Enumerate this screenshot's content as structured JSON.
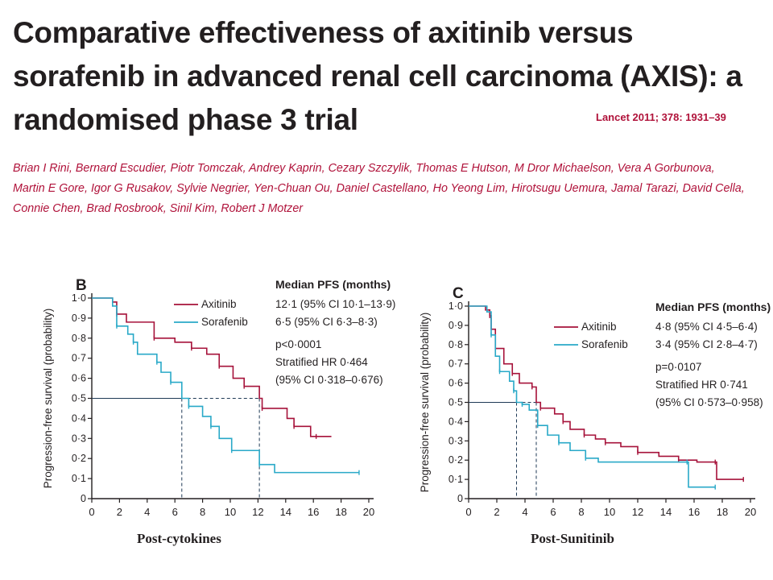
{
  "paper": {
    "title": "Comparative effectiveness of axitinib versus sorafenib in advanced renal cell carcinoma (AXIS): a randomised phase 3 trial",
    "citation": "Lancet 2011; 378: 1931–39",
    "authors": [
      "Brian I Rini",
      "Bernard Escudier",
      "Piotr Tomczak",
      "Andrey Kaprin",
      "Cezary Szczylik",
      "Thomas E Hutson",
      "M Dror Michaelson",
      "Vera A Gorbunova",
      "Martin E Gore",
      "Igor G Rusakov",
      "Sylvie Negrier",
      "Yen-Chuan Ou",
      "Daniel Castellano",
      "Ho Yeong Lim",
      "Hirotsugu Uemura",
      "Jamal Tarazi",
      "David Cella",
      "Connie Chen",
      "Brad Rosbrook",
      "Sinil Kim",
      "Robert J Motzer"
    ]
  },
  "captions": {
    "b": "Post-cytokines",
    "c": "Post-Sunitinib"
  },
  "colors": {
    "axitinib": "#a6123a",
    "sorafenib": "#29a9c8",
    "reference": "#1f3a56",
    "title": "#231f20",
    "authors": "#b0123a"
  },
  "chart_data": [
    {
      "type": "line",
      "panel": "B",
      "ylabel": "Progression-free survival (probability)",
      "x_ticks": [
        0,
        2,
        4,
        6,
        8,
        10,
        12,
        14,
        16,
        18,
        20
      ],
      "y_ticks": [
        "0",
        "0·1",
        "0·2",
        "0·3",
        "0·4",
        "0·5",
        "0·6",
        "0·7",
        "0·8",
        "0·9",
        "1·0"
      ],
      "xlim": [
        0,
        20
      ],
      "ylim": [
        0,
        1
      ],
      "legend_title": "Median PFS (months)",
      "series": [
        {
          "name": "Axitinib",
          "stat": "12·1 (95% CI 10·1–13·9)",
          "color": "#a6123a",
          "points": [
            [
              0,
              1
            ],
            [
              1.5,
              0.98
            ],
            [
              1.8,
              0.92
            ],
            [
              2.5,
              0.88
            ],
            [
              4.5,
              0.8
            ],
            [
              6,
              0.78
            ],
            [
              7.2,
              0.75
            ],
            [
              8.3,
              0.72
            ],
            [
              9.2,
              0.66
            ],
            [
              10.2,
              0.6
            ],
            [
              11,
              0.56
            ],
            [
              12.1,
              0.5
            ],
            [
              12.3,
              0.45
            ],
            [
              14.1,
              0.4
            ],
            [
              14.6,
              0.36
            ],
            [
              15.8,
              0.31
            ],
            [
              16.2,
              0.31
            ],
            [
              17.3,
              0.31
            ]
          ]
        },
        {
          "name": "Sorafenib",
          "stat": "6·5 (95% CI 6·3–8·3)",
          "color": "#29a9c8",
          "points": [
            [
              0,
              1
            ],
            [
              1.5,
              0.96
            ],
            [
              1.8,
              0.86
            ],
            [
              2.6,
              0.82
            ],
            [
              3,
              0.78
            ],
            [
              3.3,
              0.72
            ],
            [
              4.7,
              0.68
            ],
            [
              5,
              0.63
            ],
            [
              5.7,
              0.58
            ],
            [
              6.5,
              0.5
            ],
            [
              7,
              0.46
            ],
            [
              8,
              0.41
            ],
            [
              8.6,
              0.36
            ],
            [
              9.2,
              0.3
            ],
            [
              10.1,
              0.24
            ],
            [
              11.5,
              0.24
            ],
            [
              12.1,
              0.17
            ],
            [
              13.2,
              0.13
            ],
            [
              19.3,
              0.13
            ]
          ]
        }
      ],
      "annotations": [
        "p<0·0001",
        "Stratified HR 0·464",
        "(95% CI 0·318–0·676)"
      ],
      "reference_y": 0.5,
      "reference_x": [
        6.5,
        12.1
      ]
    },
    {
      "type": "line",
      "panel": "C",
      "ylabel": "Progression-free survival (probability)",
      "x_ticks": [
        0,
        2,
        4,
        6,
        8,
        10,
        12,
        14,
        16,
        18,
        20
      ],
      "y_ticks": [
        "0",
        "0·1",
        "0·2",
        "0·3",
        "0·4",
        "0·5",
        "0·6",
        "0·7",
        "0·8",
        "0·9",
        "1·0"
      ],
      "xlim": [
        0,
        20
      ],
      "ylim": [
        0,
        1
      ],
      "legend_title": "Median PFS (months)",
      "series": [
        {
          "name": "Axitinib",
          "stat": "4·8 (95% CI 4·5–6·4)",
          "color": "#a6123a",
          "points": [
            [
              0,
              1
            ],
            [
              1.2,
              0.98
            ],
            [
              1.5,
              0.95
            ],
            [
              1.6,
              0.88
            ],
            [
              1.9,
              0.78
            ],
            [
              2.5,
              0.7
            ],
            [
              3.1,
              0.65
            ],
            [
              3.6,
              0.6
            ],
            [
              4.5,
              0.58
            ],
            [
              4.8,
              0.5
            ],
            [
              5.1,
              0.47
            ],
            [
              6.1,
              0.44
            ],
            [
              6.7,
              0.4
            ],
            [
              7.2,
              0.36
            ],
            [
              8.2,
              0.33
            ],
            [
              9,
              0.31
            ],
            [
              9.7,
              0.29
            ],
            [
              10.8,
              0.27
            ],
            [
              12,
              0.24
            ],
            [
              13.5,
              0.22
            ],
            [
              14.9,
              0.2
            ],
            [
              16.2,
              0.19
            ],
            [
              17.5,
              0.19
            ],
            [
              17.6,
              0.1
            ],
            [
              19.5,
              0.1
            ]
          ]
        },
        {
          "name": "Sorafenib",
          "stat": "3·4 (95% CI 2·8–4·7)",
          "color": "#29a9c8",
          "points": [
            [
              0,
              1
            ],
            [
              1.3,
              0.97
            ],
            [
              1.6,
              0.85
            ],
            [
              1.9,
              0.74
            ],
            [
              2.2,
              0.66
            ],
            [
              2.9,
              0.61
            ],
            [
              3.2,
              0.56
            ],
            [
              3.4,
              0.5
            ],
            [
              3.8,
              0.49
            ],
            [
              4.3,
              0.46
            ],
            [
              4.9,
              0.38
            ],
            [
              5.6,
              0.33
            ],
            [
              6.4,
              0.29
            ],
            [
              7.2,
              0.25
            ],
            [
              8.3,
              0.21
            ],
            [
              9.2,
              0.19
            ],
            [
              15.5,
              0.19
            ],
            [
              15.6,
              0.06
            ],
            [
              17.5,
              0.06
            ]
          ]
        }
      ],
      "annotations": [
        "p=0·0107",
        "Stratified HR 0·741",
        "(95% CI 0·573–0·958)"
      ],
      "reference_y": 0.5,
      "reference_x": [
        3.4,
        4.8
      ]
    }
  ]
}
